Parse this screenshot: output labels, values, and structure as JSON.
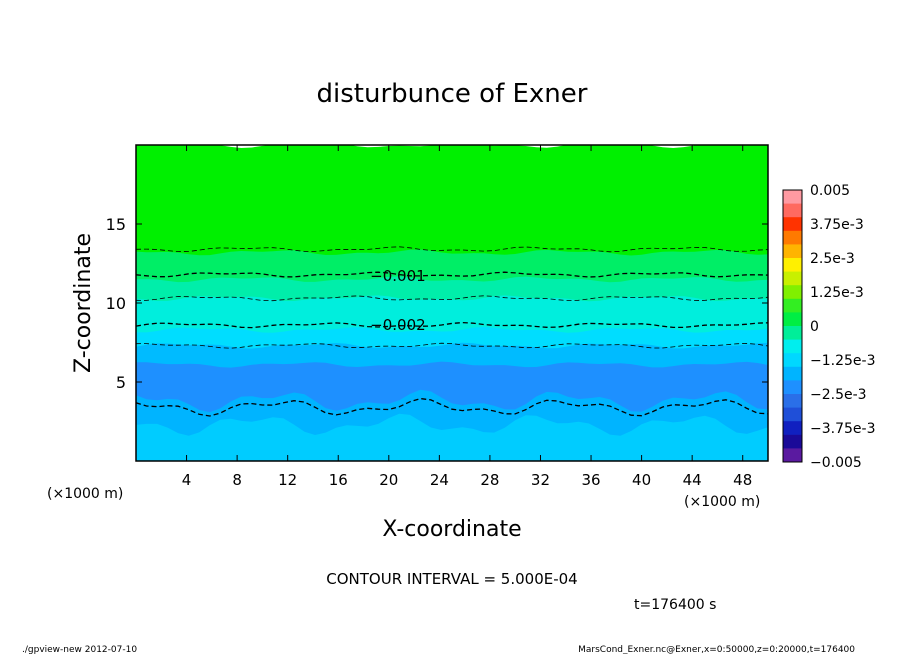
{
  "chart_data": {
    "type": "heatmap",
    "title": "disturbunce of Exner",
    "xlabel": "X-coordinate",
    "ylabel": "Z-coordinate",
    "x_unit_left": "(×1000 m)",
    "x_unit_right": "(×1000 m)",
    "xlim": [
      0,
      50
    ],
    "ylim": [
      0,
      20
    ],
    "x_ticks": [
      4,
      8,
      12,
      16,
      20,
      24,
      28,
      32,
      36,
      40,
      44,
      48
    ],
    "y_ticks": [
      5,
      10,
      15
    ],
    "contour_labels": [
      {
        "text": "−0.001",
        "x": 19,
        "z": 11.7
      },
      {
        "text": "−0.002",
        "x": 19,
        "z": 8.6
      }
    ],
    "contour_interval": "CONTOUR INTERVAL = 5.000E-04",
    "time": "t=176400 s",
    "colorbar": {
      "labels": [
        "0.005",
        "3.75e-3",
        "2.5e-3",
        "1.25e-3",
        "0",
        "−1.25e-3",
        "−2.5e-3",
        "−3.75e-3",
        "−0.005"
      ],
      "colors": [
        "#ff9aa2",
        "#ff6a60",
        "#ff3300",
        "#ff7a00",
        "#ffb400",
        "#fff000",
        "#c8f000",
        "#80f000",
        "#33ee22",
        "#00ee44",
        "#00ee99",
        "#00eeee",
        "#00d8ff",
        "#00b4ff",
        "#1e90ff",
        "#2a6fe8",
        "#1f4fd8",
        "#1020c0",
        "#1a0a98",
        "#5a1aa0"
      ]
    },
    "bands": [
      {
        "z": 20.0,
        "color": "#00f000"
      },
      {
        "z": 13.6,
        "color": "#00f000"
      },
      {
        "z": 13.2,
        "color": "#00ee66"
      },
      {
        "z": 11.5,
        "color": "#00eeaa"
      },
      {
        "z": 10.3,
        "color": "#00eedd"
      },
      {
        "z": 8.3,
        "color": "#00ddff"
      },
      {
        "z": 7.3,
        "color": "#00bbff"
      },
      {
        "z": 6.1,
        "color": "#1e90ff"
      },
      {
        "z": 3.8,
        "color": "#00b4ff"
      },
      {
        "z": 2.3,
        "color": "#00ccff"
      }
    ],
    "contours_dashed": [
      13.4,
      11.8,
      10.3,
      8.6,
      7.3,
      3.4
    ]
  },
  "footer": {
    "left": "./gpview-new  2012-07-10",
    "right": "MarsCond_Exner.nc@Exner,x=0:50000,z=0:20000,t=176400"
  }
}
